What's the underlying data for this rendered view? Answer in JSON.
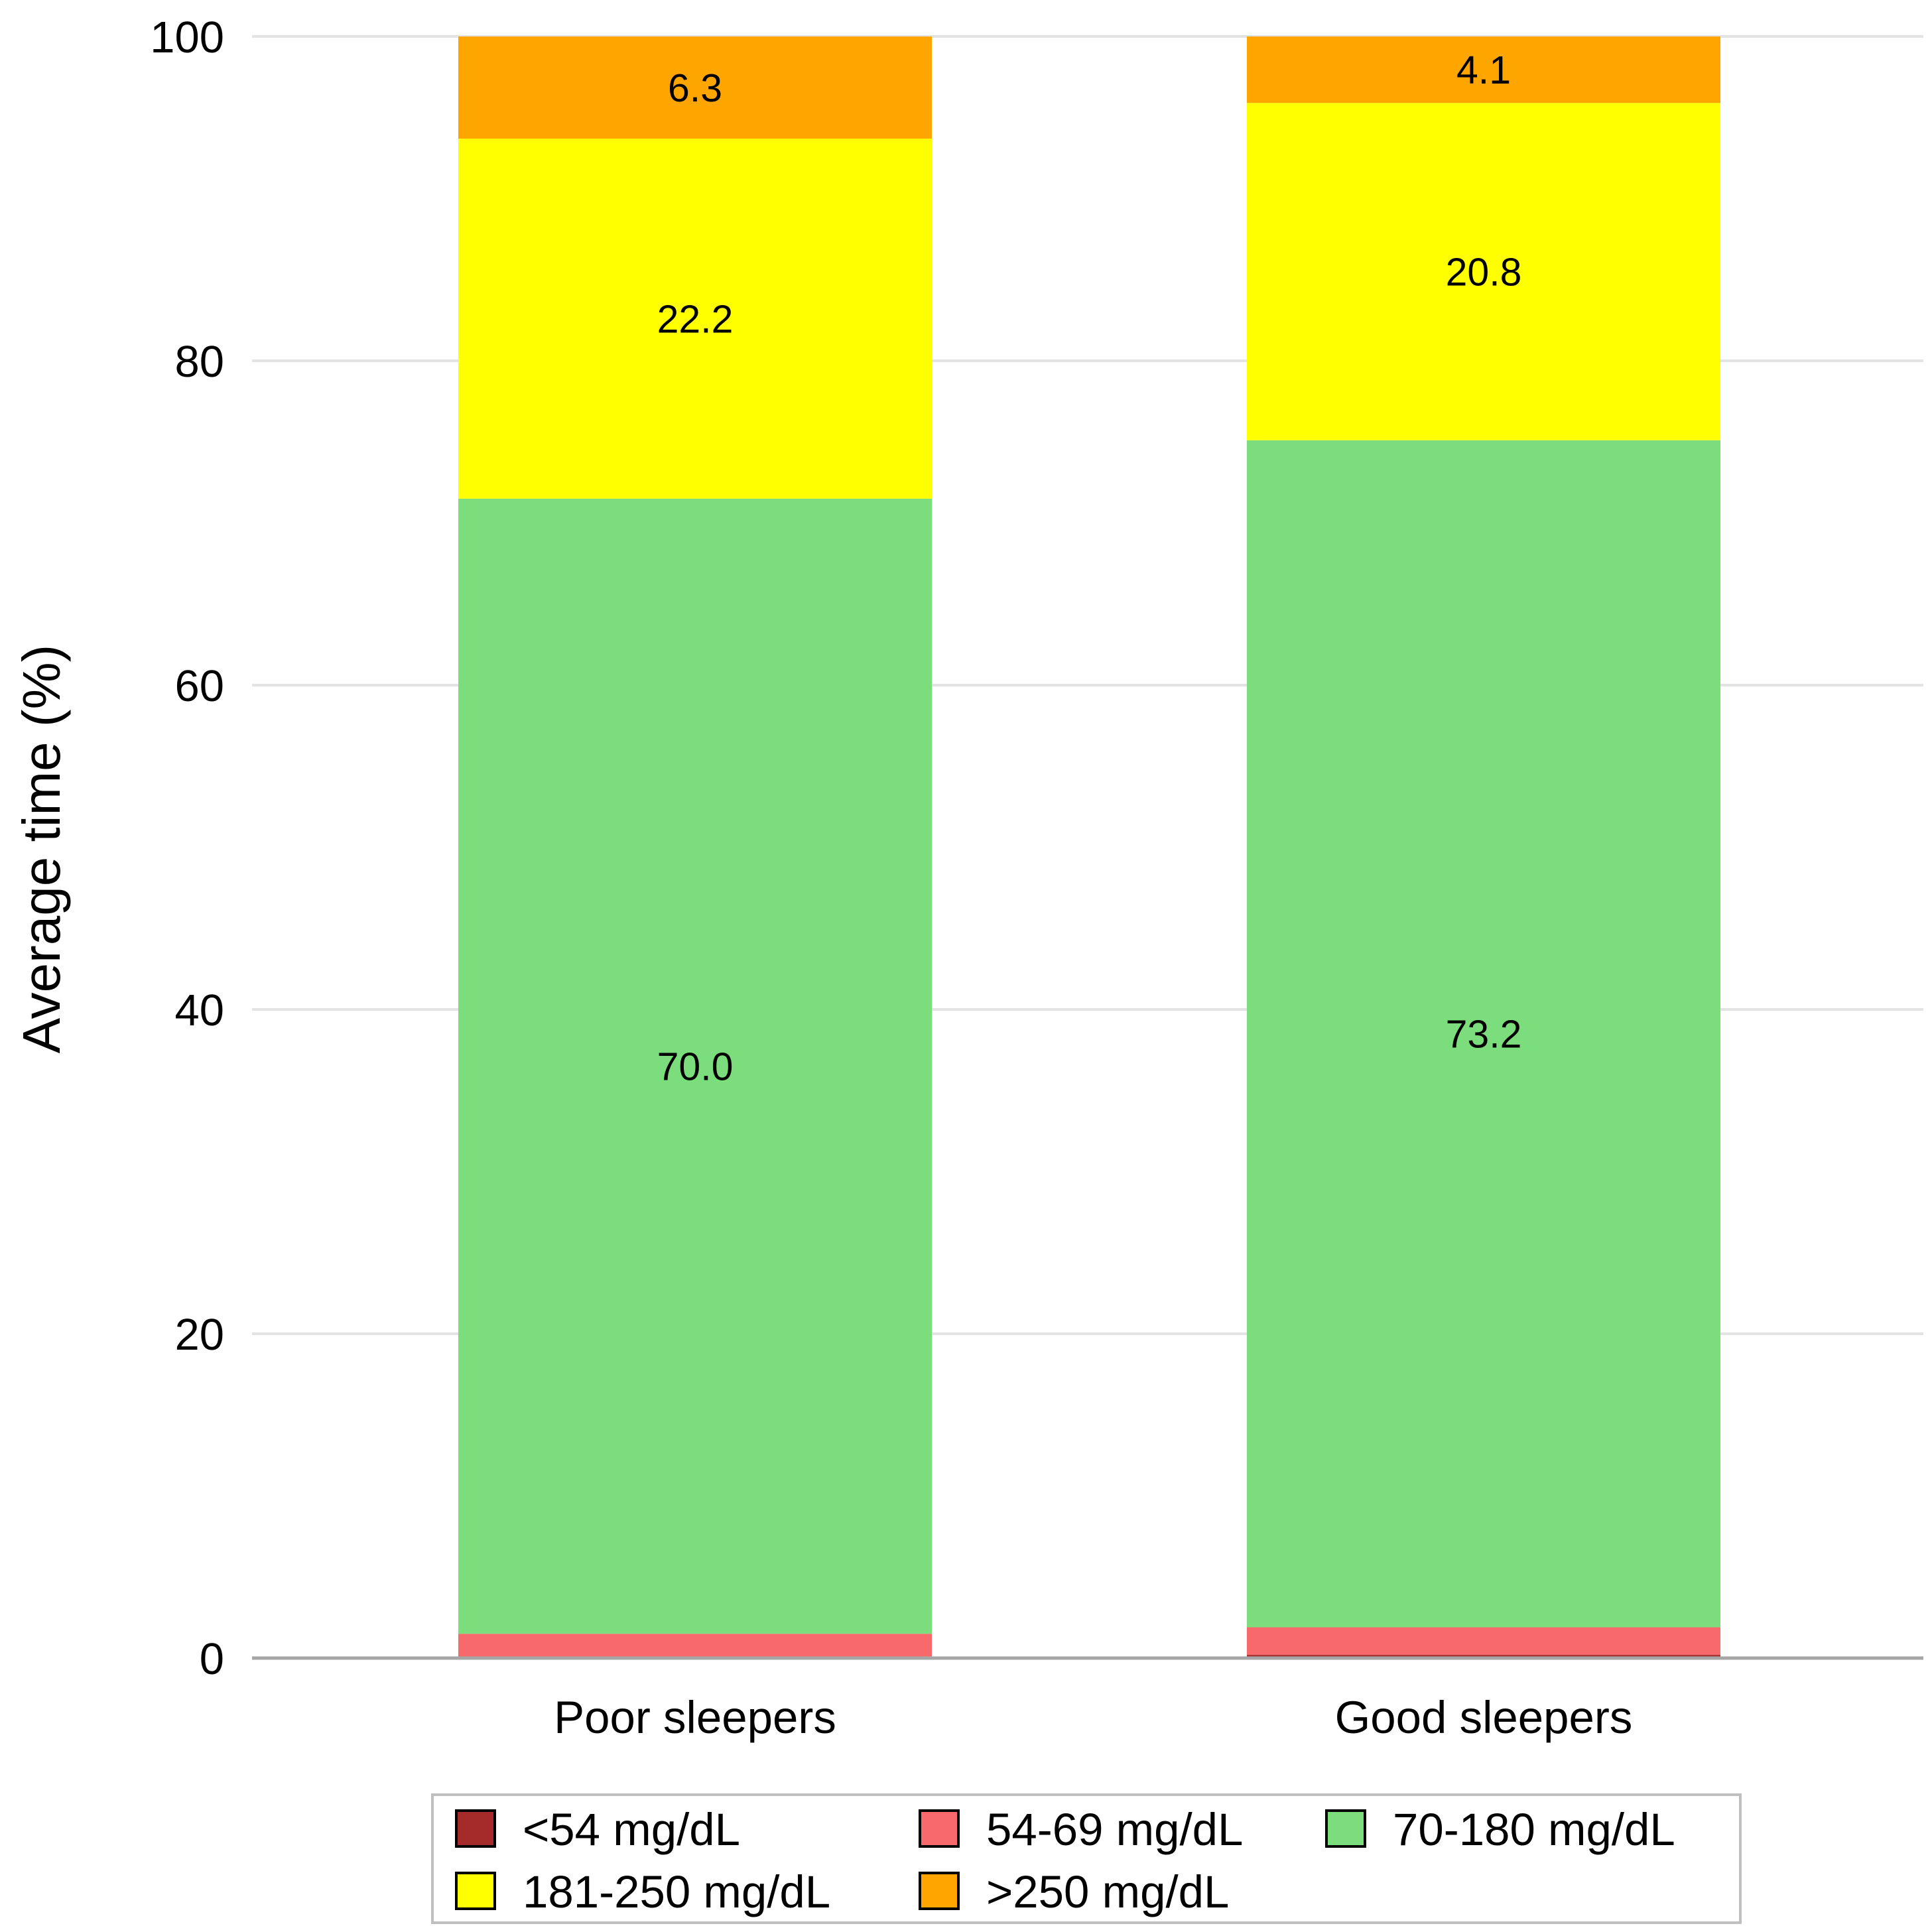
{
  "chart_data": {
    "type": "bar",
    "stacked": true,
    "title": "",
    "xlabel": "",
    "ylabel": "Average time (%)",
    "ylim": [
      0,
      100
    ],
    "yticks": [
      0,
      20,
      40,
      60,
      80,
      100
    ],
    "grid": true,
    "legend_position": "bottom",
    "categories": [
      "Poor sleepers",
      "Good sleepers"
    ],
    "series": [
      {
        "name": "<54 mg/dL",
        "color": "#a52a2a",
        "values": [
          0.1,
          0.2
        ],
        "labels": [
          "",
          ""
        ]
      },
      {
        "name": "54-69 mg/dL",
        "color": "#f8696b",
        "values": [
          1.4,
          1.7
        ],
        "labels": [
          "",
          ""
        ]
      },
      {
        "name": "70-180 mg/dL",
        "color": "#7bdd7b",
        "values": [
          70.0,
          73.2
        ],
        "labels": [
          "70.0",
          "73.2"
        ]
      },
      {
        "name": "181-250 mg/dL",
        "color": "#ffff00",
        "values": [
          22.2,
          20.8
        ],
        "labels": [
          "22.2",
          "20.8"
        ]
      },
      {
        "name": ">250 mg/dL",
        "color": "#ffa500",
        "values": [
          6.3,
          4.1
        ],
        "labels": [
          "6.3",
          "4.1"
        ]
      }
    ]
  }
}
